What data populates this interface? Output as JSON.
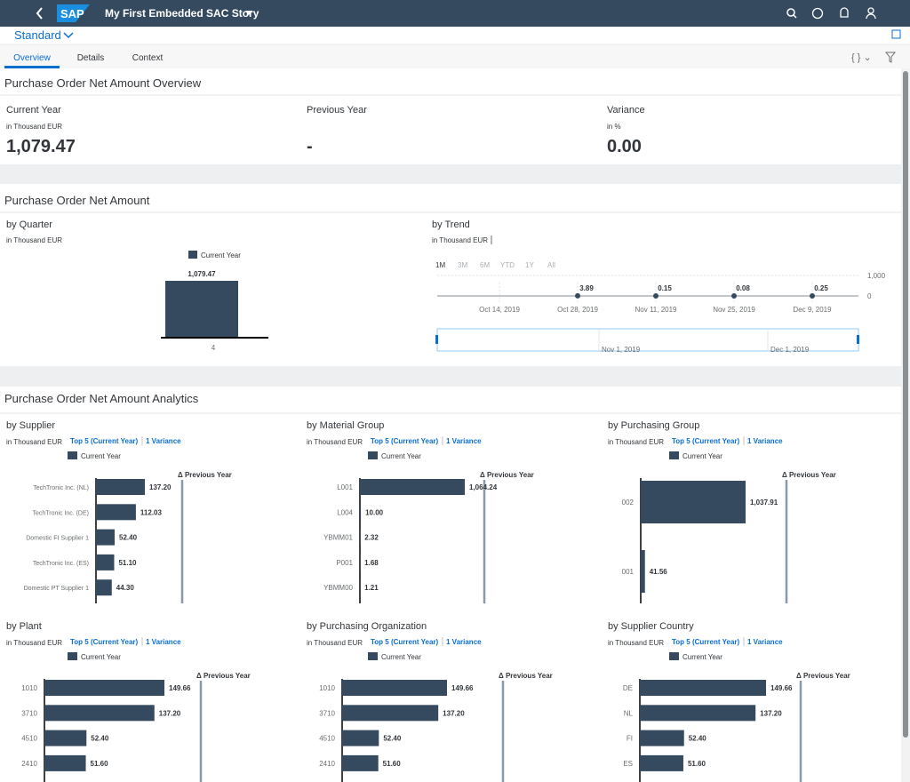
{
  "header": {
    "logo": "SAP",
    "title": "My First Embedded SAC Story"
  },
  "variant": "Standard",
  "tabs": [
    "Overview",
    "Details",
    "Context"
  ],
  "overview": {
    "title": "Purchase Order Net Amount Overview",
    "kpis": [
      {
        "label": "Current Year",
        "unit": "in Thousand EUR",
        "value": "1,079.47"
      },
      {
        "label": "Previous Year",
        "value": "-"
      },
      {
        "label": "Variance",
        "unit": "in %",
        "value": "0.00"
      }
    ]
  },
  "net_amount": {
    "title": "Purchase Order Net Amount",
    "quarter": {
      "title": "by Quarter",
      "unit": "in Thousand EUR",
      "legend": "Current Year",
      "categories": [
        "4"
      ],
      "values": [
        1079.47
      ],
      "value_labels": [
        "1,079.47"
      ]
    },
    "trend": {
      "title": "by Trend",
      "unit": "in Thousand EUR",
      "ranges": [
        "1M",
        "3M",
        "6M",
        "YTD",
        "1Y",
        "All"
      ],
      "categories": [
        "Oct 14, 2019",
        "Oct 28, 2019",
        "Nov 11, 2019",
        "Nov 25, 2019",
        "Dec 9, 2019"
      ],
      "values": [
        null,
        3.89,
        0.15,
        0.08,
        0.25
      ],
      "ylim": [
        0,
        1000
      ],
      "yticks": [
        0,
        {
          "value": 1000,
          "label": "1,000"
        }
      ],
      "navigator": [
        "Nov 1, 2019",
        "Dec 1, 2019"
      ]
    }
  },
  "analytics": {
    "title": "Purchase Order Net Amount Analytics",
    "charts": [
      {
        "title": "by Supplier",
        "unit": "in Thousand EUR",
        "links": [
          "Top 5 (Current Year)",
          "1 Variance"
        ],
        "legend": "Current Year",
        "variance": "Δ Previous Year",
        "categories": [
          "TechTronic Inc. (NL)",
          "TechTronic Inc. (DE)",
          "Domestic FI Supplier 1",
          "TechTronic Inc. (ES)",
          "Domestic PT Supplier 1"
        ],
        "values": [
          137.2,
          112.03,
          52.4,
          51.1,
          44.3
        ],
        "value_labels": [
          "137.20",
          "112.03",
          "52.40",
          "51.10",
          "44.30"
        ]
      },
      {
        "title": "by Material Group",
        "unit": "in Thousand EUR",
        "links": [
          "Top 5 (Current Year)",
          "1 Variance"
        ],
        "legend": "Current Year",
        "variance": "Δ Previous Year",
        "categories": [
          "L001",
          "L004",
          "YBMM01",
          "P001",
          "YBMM00"
        ],
        "values": [
          1064.24,
          10,
          2.32,
          1.68,
          1.21
        ],
        "value_labels": [
          "1,064.24",
          "10.00",
          "2.32",
          "1.68",
          "1.21"
        ]
      },
      {
        "title": "by Purchasing Group",
        "unit": "in Thousand EUR",
        "links": [
          "Top 5 (Current Year)",
          "1 Variance"
        ],
        "legend": "Current Year",
        "variance": "Δ Previous Year",
        "categories": [
          "002",
          "001"
        ],
        "values": [
          1037.91,
          41.56
        ],
        "value_labels": [
          "1,037.91",
          "41.56"
        ]
      },
      {
        "title": "by Plant",
        "unit": "in Thousand EUR",
        "links": [
          "Top 5 (Current Year)",
          "1 Variance"
        ],
        "legend": "Current Year",
        "variance": "Δ Previous Year",
        "categories": [
          "1010",
          "3710",
          "4510",
          "2410"
        ],
        "values": [
          149.66,
          137.2,
          52.4,
          51.6
        ],
        "value_labels": [
          "149.66",
          "137.20",
          "52.40",
          "51.60"
        ]
      },
      {
        "title": "by Purchasing Organization",
        "unit": "in Thousand EUR",
        "links": [
          "Top 5 (Current Year)",
          "1 Variance"
        ],
        "legend": "Current Year",
        "variance": "Δ Previous Year",
        "categories": [
          "1010",
          "3710",
          "4510",
          "2410"
        ],
        "values": [
          149.66,
          137.2,
          52.4,
          51.6
        ],
        "value_labels": [
          "149.66",
          "137.20",
          "52.40",
          "51.60"
        ]
      },
      {
        "title": "by Supplier Country",
        "unit": "in Thousand EUR",
        "links": [
          "Top 5 (Current Year)",
          "1 Variance"
        ],
        "legend": "Current Year",
        "variance": "Δ Previous Year",
        "categories": [
          "DE",
          "NL",
          "FI",
          "ES"
        ],
        "values": [
          149.66,
          137.2,
          52.4,
          51.6
        ],
        "value_labels": [
          "149.66",
          "137.20",
          "52.40",
          "51.60"
        ]
      }
    ]
  }
}
